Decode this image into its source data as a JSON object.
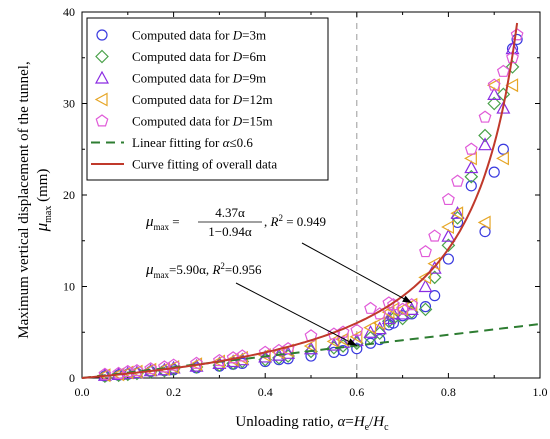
{
  "chart_data": {
    "type": "scatter",
    "xlim": [
      0,
      1.0
    ],
    "ylim": [
      0,
      40
    ],
    "x_ticks": [
      0.0,
      0.2,
      0.4,
      0.6,
      0.8,
      1.0
    ],
    "x_tick_labels": [
      "0.0",
      "0.2",
      "0.4",
      "0.6",
      "0.8",
      "1.0"
    ],
    "y_ticks": [
      0,
      10,
      20,
      30,
      40
    ],
    "y_tick_labels": [
      "0",
      "10",
      "20",
      "30",
      "40"
    ],
    "xlabel": {
      "text": "Unloading ratio, α=He/Hc",
      "main": "Unloading ratio, ",
      "sym": "α",
      "eq": "=",
      "h1": "H",
      "s1": "e",
      "sep": "/",
      "h2": "H",
      "s2": "c"
    },
    "ylabel": {
      "line1": "Maximum vertical displacement of the tunnel,",
      "sym": "μ",
      "sub": "max",
      "unit": " (mm)"
    },
    "grid": false,
    "legend_position": "top-left",
    "legend": [
      {
        "prefix": "Computed data for ",
        "var": "D",
        "suffix": "=3m"
      },
      {
        "prefix": "Computed data for ",
        "var": "D",
        "suffix": "=6m"
      },
      {
        "prefix": "Computed data for ",
        "var": "D",
        "suffix": "=9m"
      },
      {
        "prefix": "Computed data for ",
        "var": "D",
        "suffix": "=12m"
      },
      {
        "prefix": "Computed data for ",
        "var": "D",
        "suffix": "=15m"
      },
      {
        "prefix": "Linear fitting for ",
        "var": "α",
        "suffix": "≤0.6"
      },
      {
        "prefix": "Curve fitting of overall data",
        "var": "",
        "suffix": ""
      }
    ],
    "reference_line_x": 0.6,
    "series": [
      {
        "name": "Computed data for D=3m",
        "marker": "circle",
        "color": "#3a3adf",
        "x": [
          0.05,
          0.08,
          0.1,
          0.12,
          0.15,
          0.18,
          0.2,
          0.25,
          0.3,
          0.33,
          0.35,
          0.4,
          0.43,
          0.45,
          0.5,
          0.55,
          0.57,
          0.6,
          0.63,
          0.65,
          0.67,
          0.68,
          0.7,
          0.72,
          0.75,
          0.77,
          0.8,
          0.82,
          0.85,
          0.88,
          0.9,
          0.92,
          0.94,
          0.95
        ],
        "y": [
          0.2,
          0.3,
          0.4,
          0.5,
          0.7,
          0.8,
          0.9,
          1.1,
          1.3,
          1.5,
          1.6,
          1.8,
          2.0,
          2.1,
          2.4,
          2.8,
          3.0,
          3.2,
          3.8,
          4.2,
          5.8,
          6.0,
          6.8,
          7.0,
          7.8,
          9.0,
          13.0,
          17.0,
          21.0,
          16.0,
          22.5,
          25.0,
          36.0,
          37.0
        ]
      },
      {
        "name": "Computed data for D=6m",
        "marker": "diamond",
        "color": "#4aa24a",
        "x": [
          0.05,
          0.08,
          0.1,
          0.12,
          0.15,
          0.18,
          0.2,
          0.25,
          0.3,
          0.33,
          0.35,
          0.4,
          0.43,
          0.45,
          0.5,
          0.55,
          0.57,
          0.6,
          0.63,
          0.65,
          0.67,
          0.68,
          0.7,
          0.72,
          0.75,
          0.77,
          0.8,
          0.82,
          0.85,
          0.88,
          0.9,
          0.92,
          0.94
        ],
        "y": [
          0.2,
          0.3,
          0.4,
          0.5,
          0.7,
          0.8,
          1.0,
          1.2,
          1.4,
          1.6,
          1.8,
          2.0,
          2.2,
          2.4,
          2.9,
          3.3,
          3.5,
          3.8,
          4.4,
          4.9,
          6.2,
          6.5,
          6.5,
          7.2,
          7.5,
          11.0,
          14.5,
          17.5,
          22.0,
          26.5,
          30.0,
          31.0,
          34.0
        ]
      },
      {
        "name": "Computed data for D=9m",
        "marker": "triangle-up",
        "color": "#8a2be2",
        "x": [
          0.05,
          0.08,
          0.1,
          0.12,
          0.15,
          0.18,
          0.2,
          0.25,
          0.3,
          0.33,
          0.35,
          0.4,
          0.43,
          0.45,
          0.5,
          0.55,
          0.57,
          0.6,
          0.63,
          0.65,
          0.67,
          0.68,
          0.7,
          0.72,
          0.75,
          0.77,
          0.8,
          0.82,
          0.85,
          0.88,
          0.9,
          0.92,
          0.94
        ],
        "y": [
          0.3,
          0.4,
          0.5,
          0.6,
          0.8,
          0.9,
          1.1,
          1.3,
          1.6,
          1.8,
          2.0,
          2.3,
          2.5,
          2.7,
          3.2,
          3.6,
          3.9,
          4.1,
          5.0,
          5.4,
          6.5,
          7.0,
          7.0,
          7.5,
          10.0,
          12.0,
          15.5,
          18.0,
          23.0,
          25.5,
          31.0,
          29.5,
          36.0
        ]
      },
      {
        "name": "Computed data for D=12m",
        "marker": "triangle-left",
        "color": "#e6a627",
        "x": [
          0.05,
          0.08,
          0.1,
          0.12,
          0.15,
          0.18,
          0.2,
          0.25,
          0.3,
          0.33,
          0.35,
          0.4,
          0.43,
          0.45,
          0.5,
          0.55,
          0.57,
          0.6,
          0.63,
          0.65,
          0.67,
          0.68,
          0.7,
          0.72,
          0.75,
          0.77,
          0.8,
          0.82,
          0.85,
          0.88,
          0.9,
          0.92,
          0.94
        ],
        "y": [
          0.3,
          0.4,
          0.6,
          0.7,
          0.9,
          1.0,
          1.2,
          1.5,
          1.8,
          2.0,
          2.2,
          2.5,
          2.8,
          3.0,
          3.5,
          4.0,
          4.2,
          4.5,
          5.5,
          6.0,
          7.2,
          7.5,
          7.5,
          8.0,
          11.0,
          12.5,
          16.5,
          18.0,
          24.0,
          17.0,
          32.0,
          24.0,
          32.0
        ]
      },
      {
        "name": "Computed data for D=15m",
        "marker": "pentagon",
        "color": "#e05ad8",
        "x": [
          0.05,
          0.08,
          0.1,
          0.12,
          0.15,
          0.18,
          0.2,
          0.25,
          0.3,
          0.33,
          0.35,
          0.4,
          0.43,
          0.45,
          0.5,
          0.55,
          0.57,
          0.6,
          0.63,
          0.65,
          0.67,
          0.68,
          0.7,
          0.72,
          0.75,
          0.77,
          0.8,
          0.82,
          0.85,
          0.88,
          0.9,
          0.92,
          0.94,
          0.95
        ],
        "y": [
          0.4,
          0.5,
          0.7,
          0.8,
          1.0,
          1.2,
          1.4,
          1.6,
          1.9,
          2.2,
          2.4,
          2.8,
          3.0,
          3.2,
          4.6,
          4.8,
          5.0,
          5.2,
          7.6,
          7.0,
          8.2,
          8.0,
          7.5,
          8.0,
          13.8,
          15.5,
          19.5,
          21.5,
          25.0,
          28.5,
          32.0,
          33.5,
          35.0,
          37.5
        ]
      },
      {
        "name": "Linear fitting for α≤0.6",
        "type": "line",
        "style": "dashed",
        "color": "#2e7d32",
        "slope": 5.9
      },
      {
        "name": "Curve fitting of overall data",
        "type": "line",
        "style": "solid",
        "color": "#c0392b",
        "a": 4.37,
        "b": 0.94
      }
    ],
    "annotations": [
      {
        "id": "curve",
        "sym": "μ",
        "sub": "max",
        "eq": " = ",
        "num": "4.37α",
        "den": "1−0.94α",
        "sep": ", ",
        "rsym": "R",
        "rsup": "2",
        "rval": " = 0.949",
        "arrow_to": [
          0.72,
          8.2
        ]
      },
      {
        "id": "linear",
        "sym": "μ",
        "sub": "max",
        "text": "=5.90α,  ",
        "rsym": "R",
        "rsup": "2",
        "rval": "=0.956",
        "arrow_to": [
          0.6,
          3.54
        ]
      }
    ]
  }
}
